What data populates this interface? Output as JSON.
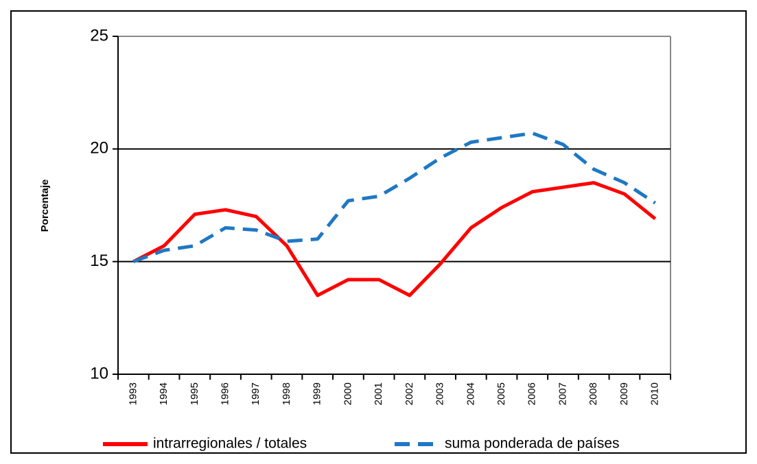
{
  "chart_data": {
    "type": "line",
    "ylabel": "Porcentaje",
    "categories": [
      "1993",
      "1994",
      "1995",
      "1996",
      "1997",
      "1998",
      "1999",
      "2000",
      "2001",
      "2002",
      "2003",
      "2004",
      "2005",
      "2006",
      "2007",
      "2008",
      "2009",
      "2010"
    ],
    "series": [
      {
        "name": "intrarregionales / totales",
        "color": "#ff0000",
        "dash": false,
        "values": [
          15.0,
          15.7,
          17.1,
          17.3,
          17.0,
          15.7,
          13.5,
          14.2,
          14.2,
          13.5,
          14.9,
          16.5,
          17.4,
          18.1,
          18.3,
          18.5,
          18.0,
          16.9
        ]
      },
      {
        "name": "suma ponderada de países",
        "color": "#1f78c4",
        "dash": true,
        "values": [
          15.0,
          15.5,
          15.7,
          16.5,
          16.4,
          15.9,
          16.0,
          17.7,
          17.9,
          18.7,
          19.6,
          20.3,
          20.5,
          20.7,
          20.2,
          19.1,
          18.5,
          17.6
        ]
      }
    ],
    "ylim": [
      10,
      25
    ],
    "yticks": [
      10,
      15,
      20,
      25
    ],
    "grid": true,
    "legend": "bottom"
  }
}
